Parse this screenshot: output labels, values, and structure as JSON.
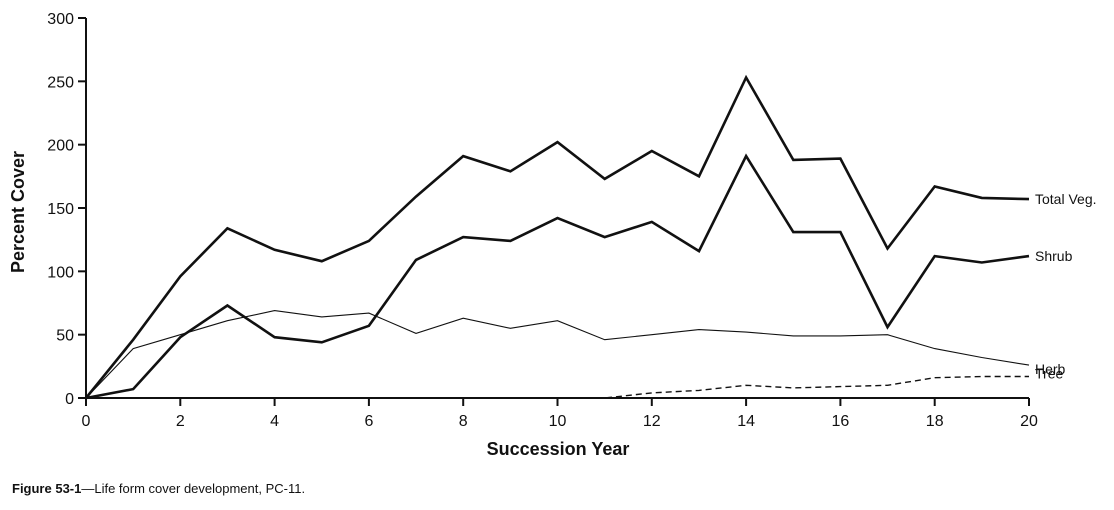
{
  "chart_data": {
    "type": "line",
    "title": "",
    "xlabel": "Succession Year",
    "ylabel": "Percent Cover",
    "xlim": [
      0,
      20
    ],
    "ylim": [
      0,
      300
    ],
    "xticks": [
      0,
      2,
      4,
      6,
      8,
      10,
      12,
      14,
      16,
      18,
      20
    ],
    "yticks": [
      0,
      50,
      100,
      150,
      200,
      250,
      300
    ],
    "grid": false,
    "legend": "none; series labeled at right end of lines",
    "x": [
      0,
      1,
      2,
      3,
      4,
      5,
      6,
      7,
      8,
      9,
      10,
      11,
      12,
      13,
      14,
      15,
      16,
      17,
      18,
      19,
      20
    ],
    "series": [
      {
        "name": "Total Veg.",
        "style": "thick-solid",
        "values": [
          0,
          46,
          96,
          134,
          117,
          108,
          124,
          159,
          191,
          179,
          202,
          173,
          195,
          175,
          253,
          188,
          189,
          118,
          167,
          158,
          157
        ]
      },
      {
        "name": "Shrub",
        "style": "thick-solid",
        "values": [
          0,
          7,
          48,
          73,
          48,
          44,
          57,
          109,
          127,
          124,
          142,
          127,
          139,
          116,
          191,
          131,
          131,
          56,
          112,
          107,
          112
        ]
      },
      {
        "name": "Herb",
        "style": "thin-solid",
        "values": [
          0,
          39,
          50,
          61,
          69,
          64,
          67,
          51,
          63,
          55,
          61,
          46,
          50,
          54,
          52,
          49,
          49,
          50,
          39,
          32,
          26
        ]
      },
      {
        "name": "Tree",
        "style": "dashed",
        "values": [
          0,
          0,
          0,
          0,
          0,
          0,
          0,
          0,
          0,
          0,
          0,
          0,
          4,
          6,
          10,
          8,
          9,
          10,
          16,
          17,
          17
        ]
      }
    ]
  },
  "caption": {
    "figure_label": "Figure 53-1",
    "text": "—Life form cover development, PC-11."
  }
}
